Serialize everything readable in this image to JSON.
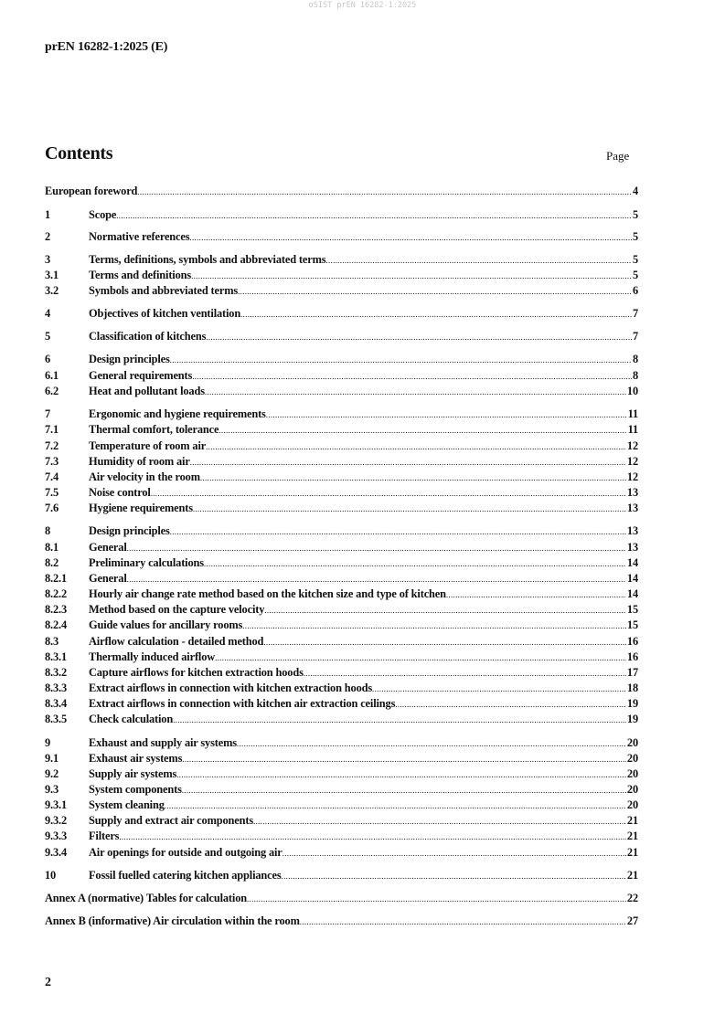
{
  "watermark": "oSIST prEN 16282-1:2025",
  "header": {
    "document_id": "prEN 16282-1:2025 (E)"
  },
  "contents": {
    "title": "Contents",
    "page_label": "Page",
    "entries": [
      {
        "num": "",
        "title": "European foreword",
        "page": "4"
      },
      {
        "num": "1",
        "title": "Scope",
        "page": "5"
      },
      {
        "num": "2",
        "title": "Normative references",
        "page": "5"
      },
      {
        "num": "3",
        "title": "Terms, definitions, symbols and abbreviated terms",
        "page": "5"
      },
      {
        "num": "3.1",
        "title": "Terms and definitions",
        "page": "5"
      },
      {
        "num": "3.2",
        "title": "Symbols and abbreviated terms",
        "page": "6"
      },
      {
        "num": "4",
        "title": "Objectives of kitchen ventilation",
        "page": "7"
      },
      {
        "num": "5",
        "title": "Classification of kitchens",
        "page": "7"
      },
      {
        "num": "6",
        "title": "Design principles",
        "page": "8"
      },
      {
        "num": "6.1",
        "title": "General requirements",
        "page": "8"
      },
      {
        "num": "6.2",
        "title": "Heat and pollutant loads",
        "page": "10"
      },
      {
        "num": "7",
        "title": "Ergonomic and hygiene requirements",
        "page": "11"
      },
      {
        "num": "7.1",
        "title": "Thermal comfort, tolerance",
        "page": "11"
      },
      {
        "num": "7.2",
        "title": "Temperature of room air",
        "page": "12"
      },
      {
        "num": "7.3",
        "title": "Humidity of room air",
        "page": "12"
      },
      {
        "num": "7.4",
        "title": "Air velocity in the room",
        "page": "12"
      },
      {
        "num": "7.5",
        "title": "Noise control",
        "page": "13"
      },
      {
        "num": "7.6",
        "title": "Hygiene requirements",
        "page": "13"
      },
      {
        "num": "8",
        "title": "Design principles",
        "page": "13"
      },
      {
        "num": "8.1",
        "title": "General",
        "page": "13"
      },
      {
        "num": "8.2",
        "title": "Preliminary calculations",
        "page": "14"
      },
      {
        "num": "8.2.1",
        "title": "General",
        "page": "14"
      },
      {
        "num": "8.2.2",
        "title": "Hourly air change rate method based on the kitchen size and type of kitchen",
        "page": "14"
      },
      {
        "num": "8.2.3",
        "title": "Method based on the capture velocity",
        "page": "15"
      },
      {
        "num": "8.2.4",
        "title": "Guide values for ancillary rooms",
        "page": "15"
      },
      {
        "num": "8.3",
        "title": "Airflow calculation - detailed method",
        "page": "16"
      },
      {
        "num": "8.3.1",
        "title": "Thermally induced airflow",
        "page": "16"
      },
      {
        "num": "8.3.2",
        "title": "Capture airflows for kitchen extraction hoods",
        "page": "17"
      },
      {
        "num": "8.3.3",
        "title": "Extract airflows in connection with kitchen extraction hoods",
        "page": "18"
      },
      {
        "num": "8.3.4",
        "title": "Extract airflows in connection with kitchen air extraction ceilings",
        "page": "19"
      },
      {
        "num": "8.3.5",
        "title": "Check calculation",
        "page": "19"
      },
      {
        "num": "9",
        "title": "Exhaust and supply air systems",
        "page": "20"
      },
      {
        "num": "9.1",
        "title": "Exhaust air systems",
        "page": "20"
      },
      {
        "num": "9.2",
        "title": "Supply air systems",
        "page": "20"
      },
      {
        "num": "9.3",
        "title": "System components",
        "page": "20"
      },
      {
        "num": "9.3.1",
        "title": "System cleaning",
        "page": "20"
      },
      {
        "num": "9.3.2",
        "title": "Supply and extract air components",
        "page": "21"
      },
      {
        "num": "9.3.3",
        "title": "Filters",
        "page": "21"
      },
      {
        "num": "9.3.4",
        "title": "Air openings for outside and outgoing air",
        "page": "21"
      },
      {
        "num": "10",
        "title": "Fossil fuelled catering kitchen appliances",
        "page": "21"
      },
      {
        "num": "",
        "title": "Annex A (normative)  Tables for calculation",
        "page": "22"
      },
      {
        "num": "",
        "title": "Annex B (informative)  Air circulation within the room",
        "page": "27"
      }
    ]
  },
  "footer": {
    "page_number": "2"
  }
}
